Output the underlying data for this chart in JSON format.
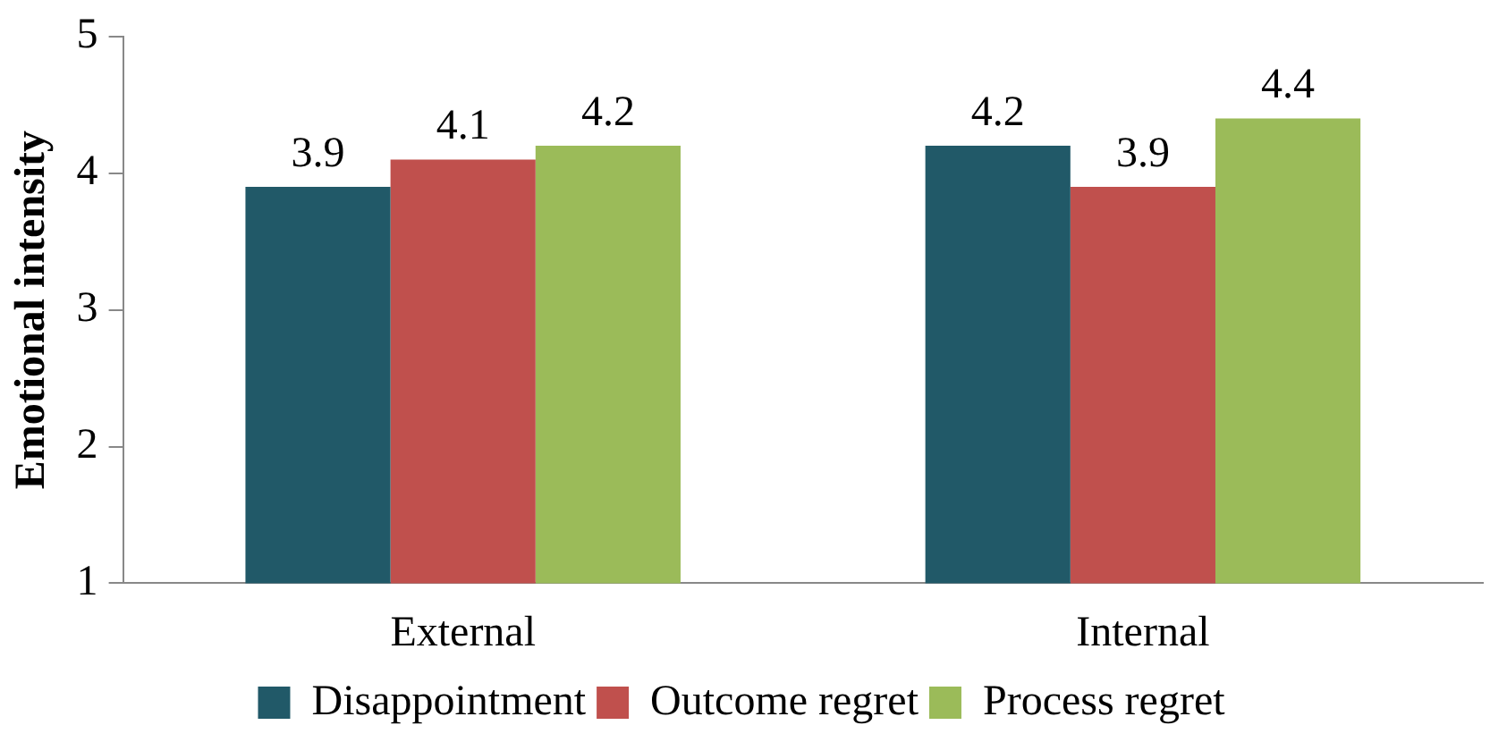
{
  "chart_data": {
    "type": "bar",
    "ylabel": "Emotional intensity",
    "categories": [
      "External",
      "Internal"
    ],
    "series": [
      {
        "name": "Disappointment",
        "color": "#215968",
        "values": [
          3.9,
          4.2
        ]
      },
      {
        "name": "Outcome regret",
        "color": "#c0504d",
        "values": [
          4.1,
          3.9
        ]
      },
      {
        "name": "Process regret",
        "color": "#9bbb59",
        "values": [
          4.2,
          4.4
        ]
      }
    ],
    "ylim": [
      1,
      5
    ],
    "yticks": [
      1,
      2,
      3,
      4,
      5
    ],
    "grid": false,
    "legend": "bottom",
    "data_labels": true
  }
}
